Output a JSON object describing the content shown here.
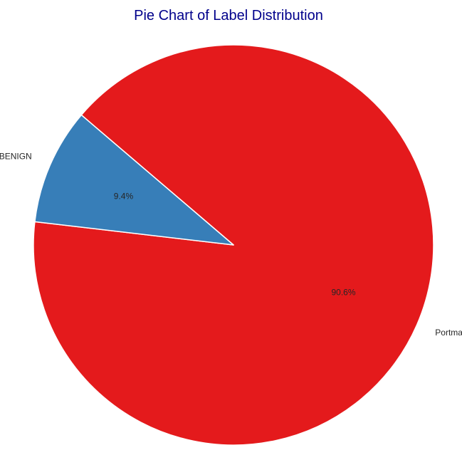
{
  "chart_data": {
    "type": "pie",
    "title": "Pie Chart of Label Distribution",
    "slices": [
      {
        "label": "Portmap",
        "value": 90.6,
        "pct_label": "90.6%",
        "color": "#e41a1c"
      },
      {
        "label": "BENIGN",
        "value": 9.4,
        "pct_label": "9.4%",
        "color": "#377eb8"
      }
    ],
    "title_color": "#00008b",
    "edge_color": "#ffffff"
  }
}
